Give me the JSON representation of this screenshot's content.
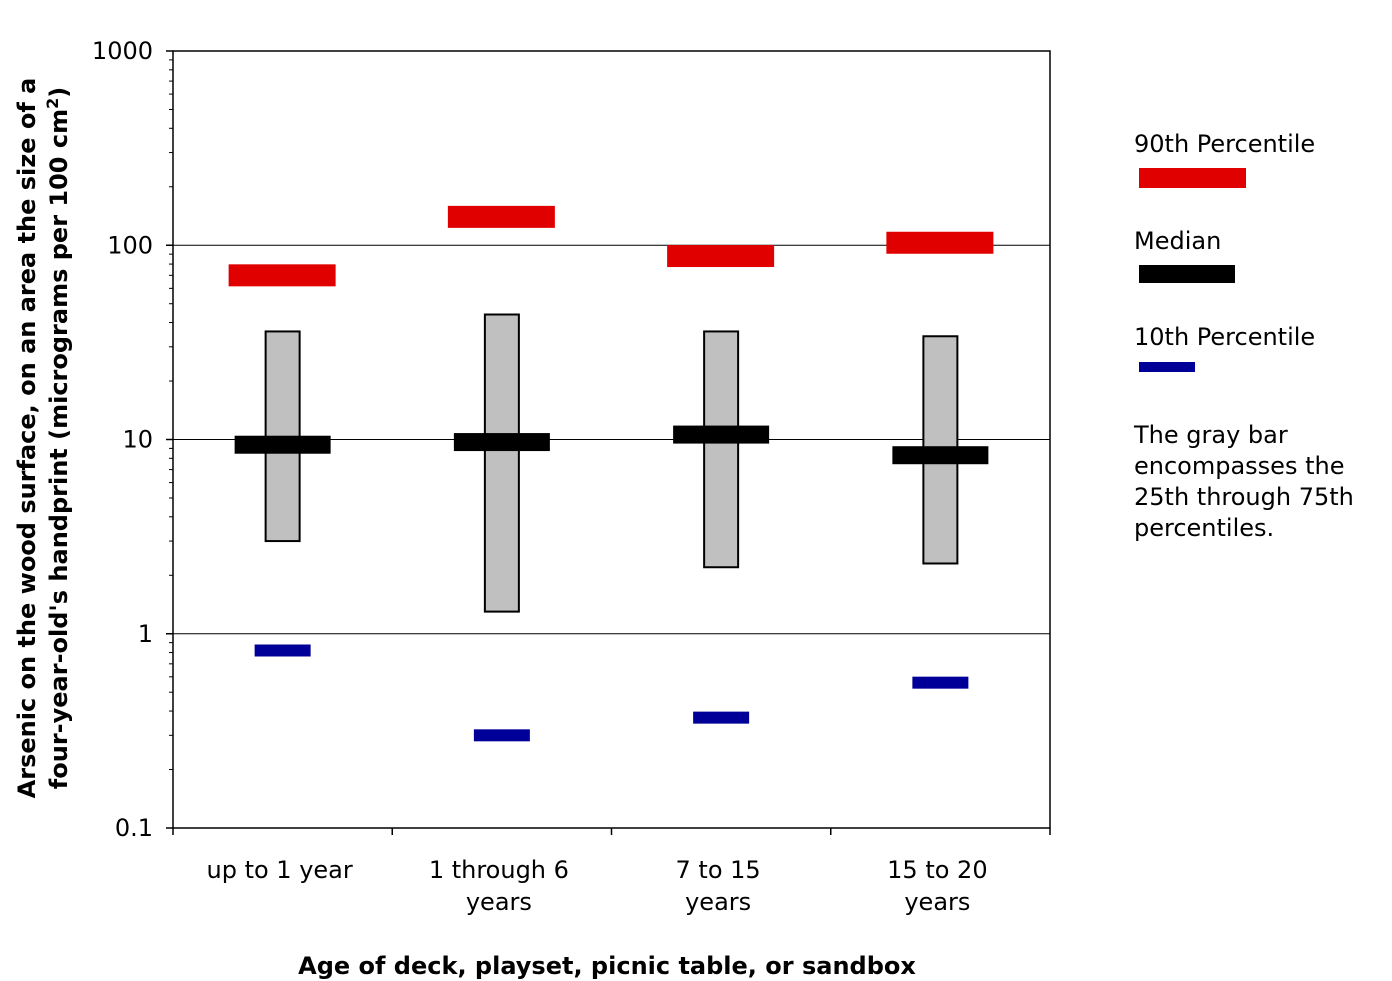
{
  "chart_data": {
    "type": "box",
    "scale": "log",
    "ylim": [
      0.1,
      1000
    ],
    "y_ticks": [
      "0.1",
      "1",
      "10",
      "100",
      "1000"
    ],
    "ylabel_line1": "Arsenic on the wood surface, on an area the size of a",
    "ylabel_line2_prefix": "four-year-old's handprint (micrograms per 100 cm",
    "ylabel_line2_sup": "2",
    "ylabel_line2_suffix": ")",
    "xlabel": "Age of deck, playset, picnic table, or sandbox",
    "categories": [
      [
        "up to 1 year"
      ],
      [
        "1 through 6",
        "years"
      ],
      [
        "7 to 15",
        "years"
      ],
      [
        "15 to 20",
        "years"
      ]
    ],
    "series": [
      {
        "name": "90th Percentile",
        "values": [
          70,
          140,
          88,
          103
        ]
      },
      {
        "name": "Median",
        "values": [
          9.4,
          9.7,
          10.6,
          8.3
        ]
      },
      {
        "name": "10th Percentile",
        "values": [
          0.82,
          0.3,
          0.37,
          0.56
        ]
      },
      {
        "name": "25th percentile",
        "values": [
          3.0,
          1.3,
          2.2,
          2.3
        ]
      },
      {
        "name": "75th percentile",
        "values": [
          36,
          44,
          36,
          34
        ]
      }
    ],
    "grid": "horizontal major",
    "colors": {
      "p90": "#e00000",
      "median": "#000000",
      "p10": "#000099",
      "iqr": "#c0c0c0"
    },
    "legend_position": "right"
  },
  "legend": {
    "p90_label": "90th Percentile",
    "median_label": "Median",
    "p10_label": "10th Percentile",
    "note": "The gray bar encompasses the 25th through 75th percentiles."
  }
}
